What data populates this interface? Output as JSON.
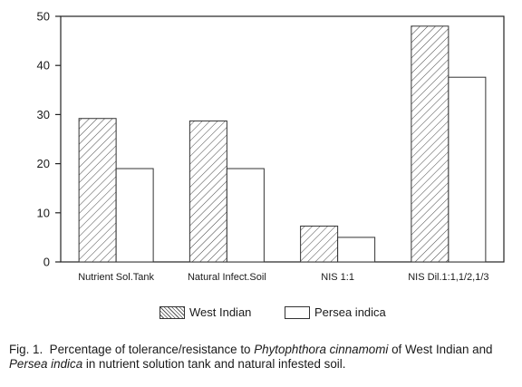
{
  "chart_data": {
    "type": "bar",
    "categories": [
      "Nutrient Sol.Tank",
      "Natural Infect.Soil",
      "NIS 1:1",
      "NIS Dil.1:1,1/2,1/3"
    ],
    "series": [
      {
        "name": "West Indian",
        "values": [
          29.2,
          28.7,
          7.3,
          48.0
        ],
        "pattern": "hatched"
      },
      {
        "name": "Persea indica",
        "values": [
          19.0,
          19.0,
          5.0,
          37.6
        ],
        "pattern": "plain"
      }
    ],
    "title": "",
    "xlabel": "",
    "ylabel": "",
    "ylim": [
      0,
      50
    ],
    "yticks": [
      0,
      10,
      20,
      30,
      40,
      50
    ],
    "grid": false,
    "legend_position": "bottom"
  },
  "legend": {
    "west_indian": "West Indian",
    "persea_indica": "Persea indica"
  },
  "caption": {
    "fig": "Fig. 1.",
    "part1": "Percentage of tolerance/resistance to",
    "species": "Phytophthora cinnamomi",
    "part2": "of West Indian and",
    "persea": "Persea indica",
    "part3": "in nutrient solution tank and natural infested soil."
  }
}
